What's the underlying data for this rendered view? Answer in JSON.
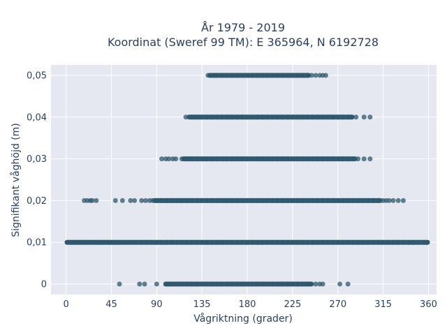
{
  "chart_data": {
    "type": "scatter",
    "title": "År 1979 - 2019",
    "subtitle": "Koordinat (Sweref 99 TM): E 365964, N 6192728",
    "xlabel": "Vågriktning (grader)",
    "ylabel": "Signifikant våghöjd (m)",
    "xlim": [
      -15,
      368
    ],
    "ylim": [
      -0.0025,
      0.0525
    ],
    "x_ticks": [
      0,
      45,
      90,
      135,
      180,
      225,
      270,
      315,
      360
    ],
    "x_tick_labels": [
      "0",
      "45",
      "90",
      "135",
      "180",
      "225",
      "270",
      "315",
      "360"
    ],
    "y_ticks": [
      0,
      0.01,
      0.02,
      0.03,
      0.04,
      0.05
    ],
    "y_tick_labels": [
      "0",
      "0,01",
      "0,02",
      "0,03",
      "0,04",
      "0,05"
    ],
    "grid": true,
    "marker_color": "#2f566b",
    "background_color": "#e5e8f0",
    "series": [
      {
        "y": 0.05,
        "x": [
          141,
          143,
          145,
          148,
          150,
          155,
          160,
          165,
          170,
          175,
          180,
          185,
          190,
          195,
          200,
          205,
          210,
          215,
          220,
          225,
          230,
          235,
          240,
          244,
          248,
          252,
          255,
          258
        ],
        "dense_range": [
          143,
          241
        ]
      },
      {
        "y": 0.04,
        "x": [
          119,
          122,
          125,
          128,
          131,
          135,
          140,
          145,
          150,
          155,
          160,
          165,
          170,
          175,
          180,
          185,
          190,
          195,
          200,
          205,
          210,
          215,
          220,
          225,
          230,
          235,
          240,
          245,
          250,
          255,
          260,
          265,
          270,
          275,
          280,
          284,
          288,
          296,
          302
        ],
        "dense_range": [
          123,
          284
        ]
      },
      {
        "y": 0.03,
        "x": [
          95,
          99,
          102,
          106,
          109,
          115,
          117,
          120,
          125,
          130,
          135,
          140,
          145,
          150,
          155,
          160,
          165,
          170,
          175,
          180,
          185,
          190,
          195,
          200,
          205,
          210,
          215,
          220,
          225,
          230,
          235,
          240,
          245,
          250,
          255,
          260,
          265,
          270,
          275,
          280,
          285,
          290,
          296,
          302
        ],
        "dense_range": [
          117,
          287
        ]
      },
      {
        "y": 0.02,
        "x": [
          18,
          21,
          24,
          26,
          30,
          49,
          56,
          64,
          68,
          75,
          79,
          83,
          86,
          90,
          95,
          100,
          105,
          110,
          115,
          120,
          125,
          130,
          135,
          140,
          145,
          150,
          155,
          160,
          165,
          170,
          175,
          180,
          185,
          190,
          195,
          200,
          205,
          210,
          215,
          220,
          225,
          230,
          235,
          240,
          245,
          250,
          255,
          260,
          265,
          270,
          275,
          280,
          285,
          290,
          295,
          300,
          305,
          310,
          315,
          318,
          321,
          325,
          330,
          335
        ],
        "dense_range": [
          88,
          312
        ]
      },
      {
        "y": 0.01,
        "x": [
          1,
          4,
          7,
          10,
          13,
          16,
          19,
          22,
          25,
          28,
          31,
          34,
          37,
          40,
          43,
          46,
          50,
          54,
          58,
          62,
          66,
          70,
          75,
          80,
          85,
          90,
          95,
          100,
          105,
          110,
          115,
          120,
          125,
          130,
          135,
          140,
          145,
          150,
          155,
          160,
          165,
          170,
          175,
          180,
          185,
          190,
          195,
          200,
          205,
          210,
          215,
          220,
          225,
          230,
          235,
          240,
          245,
          250,
          255,
          260,
          265,
          270,
          275,
          280,
          285,
          290,
          295,
          300,
          305,
          310,
          315,
          320,
          325,
          330,
          335,
          340,
          345,
          350,
          355,
          359
        ],
        "dense_range": [
          1,
          359
        ]
      },
      {
        "y": 0,
        "x": [
          53,
          73,
          78,
          90,
          99,
          102,
          105,
          110,
          115,
          120,
          125,
          130,
          135,
          140,
          145,
          150,
          155,
          160,
          165,
          170,
          175,
          180,
          185,
          190,
          195,
          200,
          205,
          210,
          215,
          220,
          225,
          230,
          235,
          240,
          244,
          248,
          252,
          255,
          272,
          280
        ],
        "dense_range": [
          99,
          243
        ]
      }
    ]
  }
}
